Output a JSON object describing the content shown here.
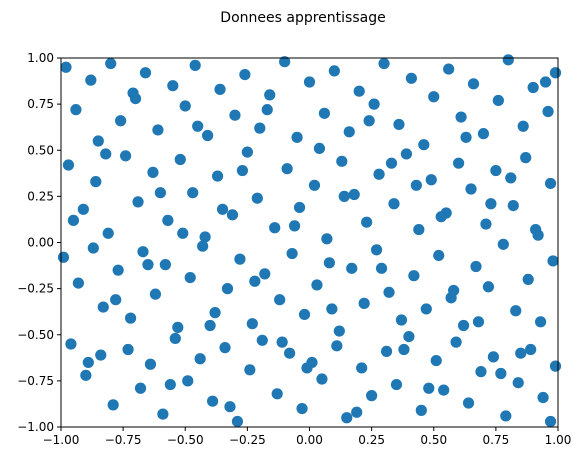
{
  "chart_data": {
    "type": "scatter",
    "title": "Donnees apprentissage",
    "xlabel": "",
    "ylabel": "",
    "xlim": [
      -1.0,
      1.0
    ],
    "ylim": [
      -1.0,
      1.0
    ],
    "x_ticks": [
      "−1.00",
      "−0.75",
      "−0.50",
      "−0.25",
      "0.00",
      "0.25",
      "0.50",
      "0.75",
      "1.00"
    ],
    "y_ticks": [
      "−1.00",
      "−0.75",
      "−0.50",
      "−0.25",
      "0.00",
      "0.25",
      "0.50",
      "0.75",
      "1.00"
    ],
    "grid": false,
    "legend": "none",
    "marker_color": "#1f77b4",
    "series": [
      {
        "x": [
          -0.98,
          -0.94,
          -0.88,
          -0.85,
          -0.8,
          -0.76,
          -0.7,
          -0.66,
          -0.61,
          -0.55,
          -0.5,
          -0.46,
          -0.41,
          -0.36,
          -0.3,
          -0.26,
          -0.2,
          -0.16,
          -0.1,
          -0.05,
          0.0,
          0.06,
          0.1,
          0.16,
          0.2,
          0.26,
          0.3,
          0.36,
          0.41,
          0.46,
          0.5,
          0.56,
          0.61,
          0.66,
          0.7,
          0.76,
          0.8,
          0.86,
          0.9,
          0.96,
          0.99,
          -0.97,
          -0.91,
          -0.86,
          -0.81,
          -0.74,
          -0.69,
          -0.63,
          -0.57,
          -0.52,
          -0.47,
          -0.42,
          -0.37,
          -0.31,
          -0.25,
          -0.21,
          -0.14,
          -0.09,
          -0.04,
          0.02,
          0.07,
          0.13,
          0.18,
          0.23,
          0.28,
          0.34,
          0.39,
          0.44,
          0.49,
          0.55,
          0.6,
          0.65,
          0.71,
          0.75,
          0.82,
          0.87,
          0.92,
          0.97,
          -0.99,
          -0.93,
          -0.87,
          -0.83,
          -0.77,
          -0.72,
          -0.67,
          -0.62,
          -0.58,
          -0.53,
          -0.48,
          -0.43,
          -0.38,
          -0.33,
          -0.28,
          -0.23,
          -0.18,
          -0.12,
          -0.07,
          -0.02,
          0.03,
          0.08,
          0.12,
          0.17,
          0.22,
          0.27,
          0.32,
          0.37,
          0.42,
          0.47,
          0.52,
          0.57,
          0.62,
          0.67,
          0.72,
          0.78,
          0.83,
          0.88,
          0.93,
          0.98,
          -0.96,
          -0.9,
          -0.84,
          -0.79,
          -0.73,
          -0.68,
          -0.64,
          -0.59,
          -0.54,
          -0.49,
          -0.44,
          -0.39,
          -0.34,
          -0.29,
          -0.24,
          -0.19,
          -0.13,
          -0.08,
          -0.03,
          0.01,
          0.05,
          0.11,
          0.15,
          0.21,
          0.25,
          0.31,
          0.35,
          0.4,
          0.45,
          0.51,
          0.54,
          0.59,
          0.64,
          0.69,
          0.74,
          0.79,
          0.84,
          0.89,
          0.94,
          0.99,
          -0.95,
          -0.89,
          -0.82,
          -0.78,
          -0.71,
          -0.65,
          -0.6,
          -0.56,
          -0.51,
          -0.45,
          -0.4,
          -0.35,
          -0.32,
          -0.27,
          -0.22,
          -0.17,
          -0.11,
          -0.06,
          -0.01,
          0.04,
          0.09,
          0.14,
          0.19,
          0.24,
          0.29,
          0.33,
          0.38,
          0.43,
          0.48,
          0.53,
          0.58,
          0.63,
          0.68,
          0.73,
          0.77,
          0.81,
          0.85,
          0.91,
          0.95,
          0.97
        ],
        "y": [
          0.95,
          0.72,
          0.88,
          0.55,
          0.97,
          0.66,
          0.78,
          0.92,
          0.61,
          0.85,
          0.74,
          0.96,
          0.58,
          0.83,
          0.69,
          0.91,
          0.62,
          0.8,
          0.98,
          0.57,
          0.87,
          0.7,
          0.93,
          0.6,
          0.82,
          0.75,
          0.97,
          0.64,
          0.89,
          0.53,
          0.79,
          0.94,
          0.68,
          0.86,
          0.59,
          0.77,
          0.99,
          0.63,
          0.84,
          0.71,
          0.92,
          0.42,
          0.18,
          0.33,
          0.05,
          0.47,
          0.22,
          0.38,
          0.12,
          0.45,
          0.27,
          0.03,
          0.36,
          0.15,
          0.49,
          0.24,
          0.08,
          0.4,
          0.19,
          0.31,
          0.02,
          0.44,
          0.26,
          0.11,
          0.37,
          0.21,
          0.48,
          0.07,
          0.34,
          0.16,
          0.43,
          0.29,
          0.1,
          0.39,
          0.2,
          0.46,
          0.04,
          0.32,
          -0.08,
          -0.22,
          -0.03,
          -0.35,
          -0.15,
          -0.41,
          -0.05,
          -0.28,
          -0.12,
          -0.46,
          -0.19,
          -0.02,
          -0.38,
          -0.25,
          -0.09,
          -0.44,
          -0.17,
          -0.31,
          -0.06,
          -0.39,
          -0.23,
          -0.11,
          -0.48,
          -0.14,
          -0.33,
          -0.04,
          -0.27,
          -0.42,
          -0.18,
          -0.36,
          -0.07,
          -0.3,
          -0.45,
          -0.13,
          -0.24,
          -0.01,
          -0.37,
          -0.2,
          -0.43,
          -0.1,
          -0.55,
          -0.72,
          -0.61,
          -0.88,
          -0.58,
          -0.79,
          -0.66,
          -0.93,
          -0.52,
          -0.75,
          -0.63,
          -0.86,
          -0.57,
          -0.97,
          -0.69,
          -0.53,
          -0.82,
          -0.6,
          -0.9,
          -0.65,
          -0.74,
          -0.56,
          -0.95,
          -0.68,
          -0.83,
          -0.59,
          -0.77,
          -0.51,
          -0.91,
          -0.64,
          -0.8,
          -0.54,
          -0.87,
          -0.7,
          -0.62,
          -0.94,
          -0.76,
          -0.58,
          -0.84,
          -0.67,
          0.12,
          -0.65,
          0.48,
          -0.31,
          0.81,
          -0.12,
          0.27,
          -0.77,
          0.05,
          0.63,
          -0.45,
          0.18,
          -0.89,
          0.39,
          -0.21,
          0.72,
          -0.54,
          0.09,
          -0.68,
          0.51,
          -0.36,
          0.25,
          -0.92,
          0.66,
          -0.14,
          0.43,
          -0.58,
          0.31,
          -0.79,
          0.14,
          -0.26,
          0.57,
          -0.43,
          0.21,
          -0.71,
          0.35,
          -0.6,
          0.07,
          0.87,
          -0.97
        ]
      }
    ]
  }
}
